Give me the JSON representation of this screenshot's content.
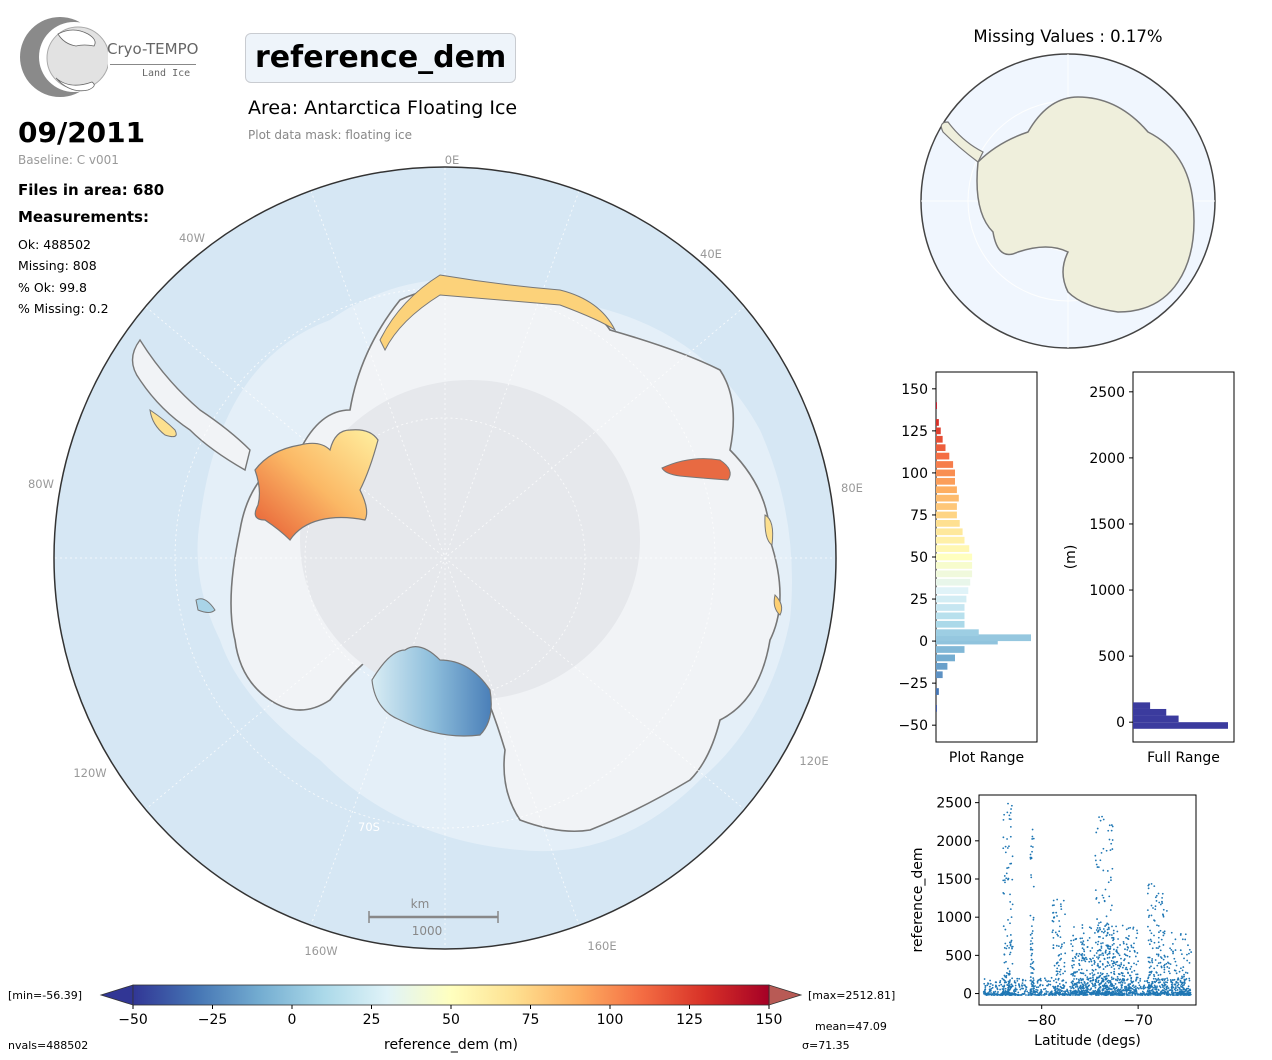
{
  "header": {
    "logo_name": "Cryo-TEMPO",
    "logo_sub": "Land Ice",
    "parameter": "reference_dem",
    "area": "Area: Antarctica Floating Ice",
    "mask": "Plot data mask: floating ice",
    "date": "09/2011",
    "baseline": "Baseline: C v001",
    "files": "Files in area: 680",
    "measurements_title": "Measurements:",
    "ok": "Ok: 488502",
    "missing": "Missing: 808",
    "pct_ok": "% Ok: 99.8",
    "pct_missing": "% Missing: 0.2"
  },
  "map": {
    "lon_labels": [
      "0E",
      "40E",
      "80E",
      "120E",
      "160E",
      "160W",
      "120W",
      "80W",
      "40W"
    ],
    "lat_label": "70S",
    "scale_unit": "km",
    "scale_value": "1000"
  },
  "missing_map": {
    "title": "Missing Values : 0.17%"
  },
  "colorbar": {
    "min_label": "[min=-56.39]",
    "max_label": "[max=2512.81]",
    "nvals": "nvals=488502",
    "mean": "mean=47.09",
    "sigma": "σ=71.35",
    "label": "reference_dem (m)",
    "ticks": [
      "−50",
      "−25",
      "0",
      "25",
      "50",
      "75",
      "100",
      "125",
      "150"
    ],
    "colors": [
      "#313695",
      "#4575b4",
      "#74add1",
      "#abd9e9",
      "#e0f3f8",
      "#ffffbf",
      "#fee090",
      "#fdae61",
      "#f46d43",
      "#d73027",
      "#a50026"
    ]
  },
  "chart_data": [
    {
      "type": "bar",
      "title": "",
      "xlabel": "Plot Range",
      "ylabel": "",
      "orientation": "horizontal",
      "ylim": [
        -60,
        160
      ],
      "yticks": [
        "−50",
        "−25",
        "0",
        "25",
        "50",
        "75",
        "100",
        "125",
        "150"
      ],
      "bin_centers": [
        -40,
        -30,
        -20,
        -15,
        -10,
        -5,
        0,
        2,
        5,
        10,
        15,
        20,
        25,
        30,
        35,
        40,
        45,
        50,
        55,
        60,
        65,
        70,
        75,
        80,
        85,
        90,
        95,
        100,
        105,
        110,
        115,
        120,
        125,
        130,
        140
      ],
      "relative_counts": [
        0.01,
        0.03,
        0.07,
        0.12,
        0.2,
        0.3,
        0.65,
        1.0,
        0.45,
        0.3,
        0.3,
        0.3,
        0.32,
        0.34,
        0.36,
        0.38,
        0.38,
        0.38,
        0.35,
        0.3,
        0.28,
        0.25,
        0.22,
        0.22,
        0.24,
        0.22,
        0.2,
        0.2,
        0.18,
        0.14,
        0.1,
        0.07,
        0.05,
        0.03,
        0.01
      ]
    },
    {
      "type": "bar",
      "title": "",
      "xlabel": "Full Range",
      "ylabel": "(m)",
      "orientation": "horizontal",
      "ylim": [
        -150,
        2650
      ],
      "yticks": [
        "0",
        "500",
        "1000",
        "1500",
        "2000",
        "2500"
      ],
      "bin_centers": [
        -25,
        25,
        75,
        125
      ],
      "relative_counts": [
        1.0,
        0.48,
        0.35,
        0.18
      ],
      "color": "#3b3b9e"
    },
    {
      "type": "scatter",
      "title": "",
      "xlabel": "Latitude (degs)",
      "ylabel": "reference_dem",
      "xlim": [
        -86.5,
        -64
      ],
      "ylim": [
        -150,
        2600
      ],
      "xticks": [
        "−80",
        "−70"
      ],
      "yticks": [
        "0",
        "500",
        "1000",
        "1500",
        "2000",
        "2500"
      ],
      "color": "#1f77b4",
      "clusters": [
        {
          "x_range": [
            -86,
            -64.5
          ],
          "y_range": [
            -20,
            200
          ],
          "n": 900
        },
        {
          "x_range": [
            -84,
            -83
          ],
          "y_range": [
            0,
            2500
          ],
          "n": 110
        },
        {
          "x_range": [
            -81.2,
            -80.8
          ],
          "y_range": [
            0,
            2150
          ],
          "n": 60
        },
        {
          "x_range": [
            -79,
            -77.5
          ],
          "y_range": [
            0,
            1300
          ],
          "n": 90
        },
        {
          "x_range": [
            -77,
            -70
          ],
          "y_range": [
            0,
            900
          ],
          "n": 500
        },
        {
          "x_range": [
            -74.5,
            -72.5
          ],
          "y_range": [
            0,
            2350
          ],
          "n": 160
        },
        {
          "x_range": [
            -69,
            -67
          ],
          "y_range": [
            0,
            1450
          ],
          "n": 170
        },
        {
          "x_range": [
            -67,
            -64.5
          ],
          "y_range": [
            0,
            800
          ],
          "n": 120
        }
      ]
    }
  ]
}
